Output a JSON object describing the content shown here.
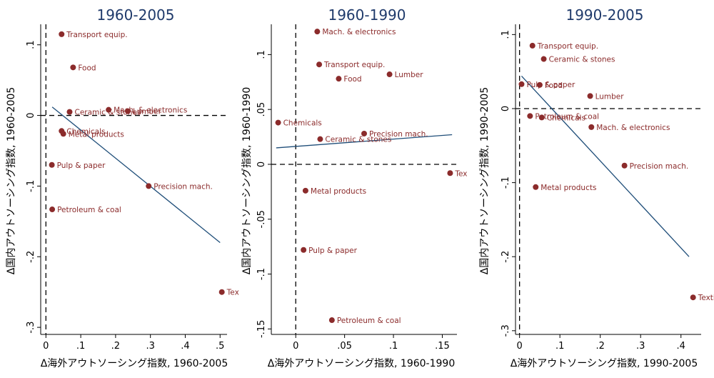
{
  "chart_data": [
    {
      "type": "scatter",
      "title": "1960-2005",
      "xlabel": "Δ海外アウトソーシング指数, 1960-2005",
      "ylabel": "Δ国内アウトソーシング指数, 1960-2005",
      "xlim": [
        -0.015,
        0.52
      ],
      "ylim": [
        -0.31,
        0.125
      ],
      "xticks": [
        0,
        0.1,
        0.2,
        0.3,
        0.4,
        0.5
      ],
      "xtick_labels": [
        "0",
        ".1",
        ".2",
        ".3",
        ".4",
        ".5"
      ],
      "yticks": [
        -0.3,
        -0.2,
        -0.1,
        0,
        0.1
      ],
      "ytick_labels": [
        "-.3",
        "-.2",
        "-.1",
        "0",
        ".1"
      ],
      "points": [
        {
          "label": "Transport equip.",
          "x": 0.045,
          "y": 0.115
        },
        {
          "label": "Food",
          "x": 0.078,
          "y": 0.068
        },
        {
          "label": "Ceramic & stones",
          "x": 0.068,
          "y": 0.005
        },
        {
          "label": "Mach. & electronics",
          "x": 0.18,
          "y": 0.008
        },
        {
          "label": "Lumber",
          "x": 0.235,
          "y": 0.006
        },
        {
          "label": "Chemicals",
          "x": 0.045,
          "y": -0.022
        },
        {
          "label": "Metal products",
          "x": 0.05,
          "y": -0.026
        },
        {
          "label": "Pulp & paper",
          "x": 0.017,
          "y": -0.07
        },
        {
          "label": "Precision mach.",
          "x": 0.295,
          "y": -0.1
        },
        {
          "label": "Petroleum & coal",
          "x": 0.018,
          "y": -0.133
        },
        {
          "label": "Tex",
          "x": 0.505,
          "y": -0.25
        }
      ],
      "fit_line": [
        {
          "x": 0.018,
          "y": 0.012
        },
        {
          "x": 0.5,
          "y": -0.18
        }
      ]
    },
    {
      "type": "scatter",
      "title": "1960-1990",
      "xlabel": "Δ海外アウトソーシング指数, 1960-1990",
      "ylabel": "Δ国内アウトソーシング指数, 1960-1990",
      "xlim": [
        -0.025,
        0.165
      ],
      "ylim": [
        -0.155,
        0.125
      ],
      "xticks": [
        0,
        0.05,
        0.1,
        0.15
      ],
      "xtick_labels": [
        "0",
        ".05",
        ".1",
        ".15"
      ],
      "yticks": [
        -0.15,
        -0.1,
        -0.05,
        0,
        0.05,
        0.1
      ],
      "ytick_labels": [
        "-.15",
        "-.1",
        "-.05",
        "0",
        ".05",
        ".1"
      ],
      "points": [
        {
          "label": "Mach. & electronics",
          "x": 0.022,
          "y": 0.121
        },
        {
          "label": "Transport equip.",
          "x": 0.024,
          "y": 0.091
        },
        {
          "label": "Food",
          "x": 0.044,
          "y": 0.078
        },
        {
          "label": "Lumber",
          "x": 0.096,
          "y": 0.082
        },
        {
          "label": "Chemicals",
          "x": -0.018,
          "y": 0.038
        },
        {
          "label": "Precision mach.",
          "x": 0.07,
          "y": 0.028
        },
        {
          "label": "Ceramic & stones",
          "x": 0.025,
          "y": 0.023
        },
        {
          "label": "Tex",
          "x": 0.158,
          "y": -0.008
        },
        {
          "label": "Metal products",
          "x": 0.01,
          "y": -0.024
        },
        {
          "label": "Pulp & paper",
          "x": 0.008,
          "y": -0.078
        },
        {
          "label": "Petroleum & coal",
          "x": 0.037,
          "y": -0.142
        }
      ],
      "fit_line": [
        {
          "x": -0.02,
          "y": 0.015
        },
        {
          "x": 0.16,
          "y": 0.027
        }
      ]
    },
    {
      "type": "scatter",
      "title": "1990-2005",
      "xlabel": "Δ海外アウトソーシング指数, 1990-2005",
      "ylabel": "Δ国内アウトソーシング指数, 1990-2005",
      "xlim": [
        -0.01,
        0.45
      ],
      "ylim": [
        -0.305,
        0.11
      ],
      "xticks": [
        0,
        0.1,
        0.2,
        0.3,
        0.4
      ],
      "xtick_labels": [
        "0",
        ".1",
        ".2",
        ".3",
        ".4"
      ],
      "yticks": [
        -0.3,
        -0.2,
        -0.1,
        0,
        0.1
      ],
      "ytick_labels": [
        "-.3",
        "-.2",
        "-.1",
        "0",
        ".1"
      ],
      "points": [
        {
          "label": "Transport equip.",
          "x": 0.032,
          "y": 0.085
        },
        {
          "label": "Ceramic & stones",
          "x": 0.06,
          "y": 0.067
        },
        {
          "label": "Pulp & paper",
          "x": 0.005,
          "y": 0.033
        },
        {
          "label": "Food",
          "x": 0.05,
          "y": 0.032
        },
        {
          "label": "Lumber",
          "x": 0.175,
          "y": 0.017
        },
        {
          "label": "Petroleum & coal",
          "x": 0.026,
          "y": -0.01
        },
        {
          "label": "Chemicals",
          "x": 0.055,
          "y": -0.012
        },
        {
          "label": "Mach. & electronics",
          "x": 0.178,
          "y": -0.025
        },
        {
          "label": "Precision mach.",
          "x": 0.26,
          "y": -0.077
        },
        {
          "label": "Metal products",
          "x": 0.04,
          "y": -0.106
        },
        {
          "label": "Textile",
          "x": 0.43,
          "y": -0.255
        }
      ],
      "fit_line": [
        {
          "x": 0.005,
          "y": 0.044
        },
        {
          "x": 0.42,
          "y": -0.2
        }
      ]
    }
  ]
}
